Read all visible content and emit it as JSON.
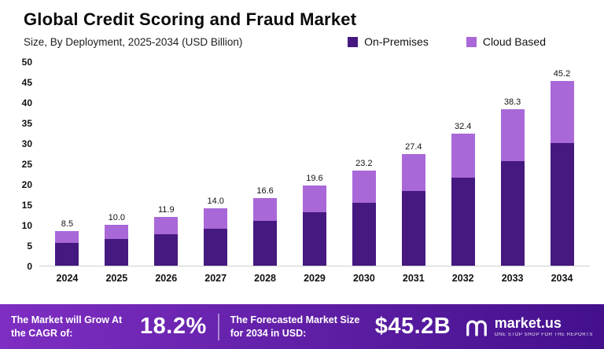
{
  "header": {
    "title": "Global Credit Scoring and Fraud Market",
    "subtitle": "Size, By Deployment, 2025-2034 (USD Billion)"
  },
  "chart_data": {
    "type": "bar",
    "stacked": true,
    "title": "Global Credit Scoring and Fraud Market",
    "subtitle": "Size, By Deployment, 2025-2034 (USD Billion)",
    "unit": "USD Billion",
    "categories": [
      "2024",
      "2025",
      "2026",
      "2027",
      "2028",
      "2029",
      "2030",
      "2031",
      "2032",
      "2033",
      "2034"
    ],
    "series": [
      {
        "name": "On-Premises",
        "color": "#45197f",
        "values": [
          5.5,
          6.5,
          7.6,
          9.0,
          10.9,
          13.0,
          15.3,
          18.2,
          21.5,
          25.6,
          30.0
        ]
      },
      {
        "name": "Cloud Based",
        "color": "#a968d8",
        "values": [
          3.0,
          3.5,
          4.3,
          5.0,
          5.7,
          6.6,
          7.9,
          9.2,
          10.9,
          12.7,
          15.2
        ]
      }
    ],
    "totals": [
      8.5,
      10.0,
      11.9,
      14.0,
      16.6,
      19.6,
      23.2,
      27.4,
      32.4,
      38.3,
      45.2
    ],
    "total_labels": [
      "8.5",
      "10.0",
      "11.9",
      "14.0",
      "16.6",
      "19.6",
      "23.2",
      "27.4",
      "32.4",
      "38.3",
      "45.2"
    ],
    "ylim": [
      0,
      50
    ],
    "yticks": [
      0,
      5,
      10,
      15,
      20,
      25,
      30,
      35,
      40,
      45,
      50
    ],
    "grid": false,
    "legend_position": "top-right"
  },
  "footer": {
    "cagr_label": "The Market will Grow At the CAGR of:",
    "cagr_value": "18.2%",
    "forecast_label": "The Forecasted Market Size for 2034 in USD:",
    "forecast_value": "$45.2B",
    "logo_text": "market.us",
    "logo_tagline": "ONE STOP SHOP FOR THE REPORTS"
  },
  "colors": {
    "on_premises": "#45197f",
    "cloud_based": "#a968d8",
    "footer_gradient_left": "#7e2ec2",
    "footer_gradient_right": "#43108c",
    "title_text": "#0a0a0a"
  }
}
